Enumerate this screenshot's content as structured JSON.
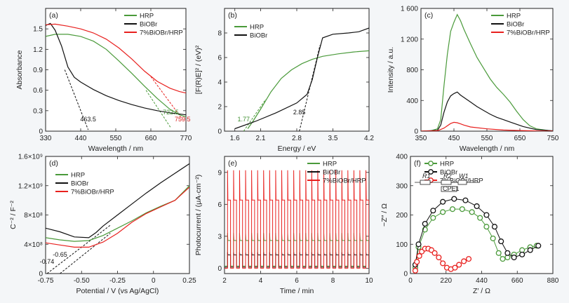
{
  "colors": {
    "green": "#4a9a3a",
    "black": "#111111",
    "red": "#e8201e",
    "annoGreen": "#3f8f30",
    "annoRed": "#d8201e"
  },
  "chart_data": [
    {
      "panel": "(a)",
      "type": "line",
      "xlabel": "Wavelength / nm",
      "ylabel": "Absorbance",
      "xlim": [
        330,
        770
      ],
      "ylim": [
        0,
        1.8
      ],
      "xticks": [
        330,
        440,
        550,
        660,
        770
      ],
      "yticks": [
        0,
        0.3,
        0.6,
        0.9,
        1.2,
        1.5
      ],
      "yticklabels": [
        "0",
        "0.3",
        "0.6",
        "0.9",
        "1.2",
        "1.5"
      ],
      "legend_position": "top-right",
      "series": [
        {
          "name": "HRP",
          "color": "green",
          "x": [
            330,
            360,
            400,
            440,
            480,
            520,
            560,
            600,
            640,
            680,
            720,
            750,
            770
          ],
          "y": [
            1.39,
            1.42,
            1.42,
            1.39,
            1.32,
            1.2,
            1.03,
            0.85,
            0.66,
            0.48,
            0.32,
            0.24,
            0.21
          ]
        },
        {
          "name": "BiOBr",
          "color": "black",
          "x": [
            330,
            345,
            360,
            380,
            400,
            420,
            440,
            480,
            520,
            560,
            600,
            640,
            680,
            720,
            770
          ],
          "y": [
            1.55,
            1.58,
            1.48,
            1.25,
            0.94,
            0.79,
            0.72,
            0.61,
            0.52,
            0.45,
            0.39,
            0.34,
            0.3,
            0.27,
            0.24
          ]
        },
        {
          "name": "7%BiOBr/HRP",
          "color": "red",
          "x": [
            330,
            360,
            400,
            440,
            480,
            520,
            560,
            600,
            640,
            680,
            720,
            750,
            770
          ],
          "y": [
            1.56,
            1.57,
            1.54,
            1.5,
            1.44,
            1.35,
            1.22,
            1.06,
            0.88,
            0.73,
            0.63,
            0.58,
            0.56
          ]
        }
      ],
      "annotations": [
        {
          "text": "463.5",
          "x": 463.5,
          "color": "black"
        },
        {
          "text": "722.5",
          "x": 722.5,
          "color": "annoGreen"
        },
        {
          "text": "759.5",
          "x": 759.5,
          "color": "annoRed"
        }
      ],
      "tangents": [
        {
          "color": "black",
          "x": [
            390,
            463.5
          ],
          "y": [
            0.9,
            0.02
          ]
        },
        {
          "color": "green",
          "x": [
            645,
            722.5
          ],
          "y": [
            0.6,
            0.05
          ]
        },
        {
          "color": "red",
          "x": [
            660,
            759.5
          ],
          "y": [
            0.8,
            0.17
          ]
        }
      ]
    },
    {
      "panel": "(b)",
      "type": "line",
      "xlabel": "Energy / eV",
      "ylabel": "[F(R)E]² / (eV)²",
      "xlim": [
        1.4,
        4.2
      ],
      "ylim": [
        0,
        10
      ],
      "xticks": [
        1.6,
        2.1,
        2.8,
        3.5,
        4.2
      ],
      "xticklabels": [
        "1.6",
        "2.1",
        "2.8",
        "3.5",
        "4.2"
      ],
      "yticks": [
        0,
        2,
        4,
        6,
        8
      ],
      "legend_position": "top-left",
      "series": [
        {
          "name": "HRP",
          "color": "green",
          "x": [
            1.85,
            1.95,
            2.1,
            2.3,
            2.5,
            2.7,
            2.9,
            3.1,
            3.3,
            3.6,
            3.9,
            4.2
          ],
          "y": [
            0.2,
            0.8,
            1.8,
            3.2,
            4.3,
            5.0,
            5.5,
            5.85,
            6.1,
            6.3,
            6.45,
            6.55
          ]
        },
        {
          "name": "BiOBr",
          "color": "black",
          "x": [
            1.6,
            2.0,
            2.4,
            2.8,
            3.0,
            3.1,
            3.2,
            3.3,
            3.5,
            3.8,
            4.0,
            4.2
          ],
          "y": [
            0.2,
            0.8,
            1.5,
            2.3,
            3.0,
            4.2,
            6.0,
            7.6,
            7.9,
            8.0,
            8.1,
            8.4
          ]
        }
      ],
      "annotations": [
        {
          "text": "1.77",
          "x": 1.77,
          "color": "annoGreen"
        },
        {
          "text": "2.85",
          "x": 2.85,
          "color": "black"
        }
      ],
      "tangents": [
        {
          "color": "green",
          "x": [
            1.77,
            2.2
          ],
          "y": [
            0,
            2.6
          ]
        },
        {
          "color": "black",
          "x": [
            2.85,
            3.25
          ],
          "y": [
            0,
            7.0
          ]
        }
      ]
    },
    {
      "panel": "(c)",
      "type": "line",
      "xlabel": "Wavelength / nm",
      "ylabel": "Intensity / a.u.",
      "xlim": [
        350,
        750
      ],
      "ylim": [
        0,
        1600
      ],
      "xticks": [
        350,
        450,
        550,
        650,
        750
      ],
      "yticks": [
        0,
        400,
        800,
        1200,
        1600
      ],
      "yticklabels": [
        "0",
        "400",
        "800",
        "1 200",
        "1 600"
      ],
      "legend_position": "top-right",
      "series": [
        {
          "name": "HRP",
          "color": "green",
          "x": [
            350,
            380,
            400,
            410,
            420,
            430,
            440,
            450,
            460,
            470,
            480,
            500,
            520,
            540,
            560,
            580,
            600,
            620,
            640,
            660,
            680,
            700,
            750
          ],
          "y": [
            0,
            5,
            30,
            150,
            600,
            1000,
            1300,
            1420,
            1520,
            1440,
            1330,
            1140,
            960,
            820,
            680,
            570,
            480,
            380,
            260,
            150,
            70,
            30,
            0
          ]
        },
        {
          "name": "BiOBr",
          "color": "black",
          "x": [
            350,
            400,
            410,
            420,
            430,
            440,
            450,
            460,
            470,
            480,
            500,
            520,
            540,
            560,
            580,
            600,
            620,
            640,
            660,
            700,
            750
          ],
          "y": [
            0,
            10,
            80,
            250,
            380,
            460,
            490,
            510,
            470,
            440,
            380,
            320,
            270,
            220,
            180,
            150,
            120,
            90,
            60,
            20,
            5
          ]
        },
        {
          "name": "7%BiOBr/HRP",
          "color": "red",
          "x": [
            350,
            400,
            420,
            440,
            450,
            460,
            470,
            480,
            500,
            550,
            600,
            650,
            700,
            750
          ],
          "y": [
            0,
            5,
            40,
            100,
            115,
            110,
            95,
            80,
            55,
            30,
            15,
            8,
            3,
            0
          ]
        }
      ]
    },
    {
      "panel": "(d)",
      "type": "line",
      "xlabel": "Potential / V (vs Ag/AgCl)",
      "ylabel": "C⁻² / F⁻²",
      "xlim": [
        -0.75,
        0.25
      ],
      "ylim": [
        0,
        1600000000.0
      ],
      "xticks": [
        -0.75,
        -0.5,
        -0.25,
        0,
        0.25
      ],
      "xticklabels": [
        "-0.75",
        "-0.50",
        "-0.25",
        "0",
        "0.25"
      ],
      "yticks": [
        0,
        400000000.0,
        800000000.0,
        1200000000.0,
        1600000000.0
      ],
      "yticklabels": [
        "0",
        "4×10⁸",
        "8×10⁸",
        "1.2×10⁹",
        "1.6×10⁹"
      ],
      "legend_position": "top-left",
      "series": [
        {
          "name": "HRP",
          "color": "green",
          "x": [
            -0.75,
            -0.65,
            -0.55,
            -0.45,
            -0.35,
            -0.25,
            -0.15,
            -0.05,
            0.05,
            0.15,
            0.25
          ],
          "y": [
            490000000.0,
            460000000.0,
            440000000.0,
            450000000.0,
            520000000.0,
            620000000.0,
            720000000.0,
            830000000.0,
            920000000.0,
            1000000000.0,
            1200000000.0
          ]
        },
        {
          "name": "BiOBr",
          "color": "black",
          "x": [
            -0.75,
            -0.65,
            -0.55,
            -0.45,
            -0.4,
            -0.35,
            -0.25,
            -0.15,
            -0.05,
            0.05,
            0.15,
            0.25
          ],
          "y": [
            620000000.0,
            570000000.0,
            500000000.0,
            490000000.0,
            560000000.0,
            650000000.0,
            800000000.0,
            950000000.0,
            1100000000.0,
            1240000000.0,
            1370000000.0,
            1500000000.0
          ]
        },
        {
          "name": "7%BiOBr/HRP",
          "color": "red",
          "x": [
            -0.75,
            -0.65,
            -0.55,
            -0.45,
            -0.35,
            -0.25,
            -0.15,
            -0.05,
            0.05,
            0.15,
            0.25
          ],
          "y": [
            420000000.0,
            390000000.0,
            360000000.0,
            360000000.0,
            430000000.0,
            550000000.0,
            700000000.0,
            820000000.0,
            910000000.0,
            1000000000.0,
            1180000000.0
          ]
        }
      ],
      "annotations": [
        {
          "text": "-0.74",
          "x": -0.74,
          "color": "black"
        },
        {
          "text": "-0.65",
          "x": -0.65,
          "color": "black"
        }
      ],
      "tangents": [
        {
          "color": "black",
          "x": [
            -0.74,
            -0.3
          ],
          "y": [
            0,
            660000000.0
          ]
        },
        {
          "color": "black",
          "x": [
            -0.65,
            -0.3
          ],
          "y": [
            0,
            550000000.0
          ]
        }
      ]
    },
    {
      "panel": "(e)",
      "type": "line",
      "xlabel": "Time / min",
      "ylabel": "Photocurrent / (μA·cm⁻²)",
      "xlim": [
        2,
        10
      ],
      "ylim": [
        -0.5,
        10.5
      ],
      "xticks": [
        2,
        4,
        6,
        8,
        10
      ],
      "yticks": [
        0,
        3,
        6,
        9
      ],
      "legend_position": "top-right",
      "cycle_period_min": 0.333,
      "series": [
        {
          "name": "HRP",
          "color": "green",
          "pattern": "square-wave",
          "dark": 0.2,
          "light": 2.6,
          "spike": 3.3
        },
        {
          "name": "BiOBr",
          "color": "black",
          "pattern": "square-wave",
          "dark": 0.1,
          "light": 1.25,
          "spike": 1.5
        },
        {
          "name": "7%BiOBr/HRP",
          "color": "red",
          "pattern": "square-wave",
          "dark": 0.0,
          "light": 6.4,
          "spike": 9.2
        }
      ]
    },
    {
      "panel": "(f)",
      "type": "scatter",
      "xlabel": "Z′ / Ω",
      "ylabel": "−Z″ / Ω",
      "xlim": [
        0,
        880
      ],
      "ylim": [
        0,
        400
      ],
      "xticks": [
        0,
        220,
        440,
        660,
        880
      ],
      "yticks": [
        0,
        100,
        200,
        300,
        400
      ],
      "legend_position": "top-right",
      "circuit_labels": [
        "R1",
        "R2",
        "W1",
        "CPE1"
      ],
      "series": [
        {
          "name": "HRP",
          "color": "green",
          "x": [
            30,
            50,
            90,
            140,
            200,
            260,
            320,
            380,
            430,
            470,
            510,
            545,
            570,
            600,
            640,
            690,
            740,
            780
          ],
          "y": [
            20,
            90,
            150,
            190,
            210,
            220,
            220,
            210,
            190,
            160,
            120,
            70,
            50,
            55,
            65,
            80,
            90,
            95
          ]
        },
        {
          "name": "BiOBr",
          "color": "black",
          "x": [
            30,
            50,
            90,
            140,
            200,
            270,
            340,
            410,
            470,
            520,
            560,
            600,
            640,
            690,
            740,
            790
          ],
          "y": [
            30,
            100,
            170,
            215,
            245,
            255,
            250,
            230,
            200,
            160,
            110,
            70,
            55,
            65,
            80,
            95
          ]
        },
        {
          "name": "7%BiOBr/HRP",
          "color": "red",
          "x": [
            30,
            40,
            55,
            70,
            90,
            110,
            130,
            150,
            175,
            200,
            225,
            250,
            275,
            300,
            330,
            360
          ],
          "y": [
            10,
            40,
            60,
            75,
            85,
            85,
            80,
            70,
            55,
            35,
            20,
            15,
            20,
            30,
            42,
            50
          ]
        }
      ]
    }
  ]
}
